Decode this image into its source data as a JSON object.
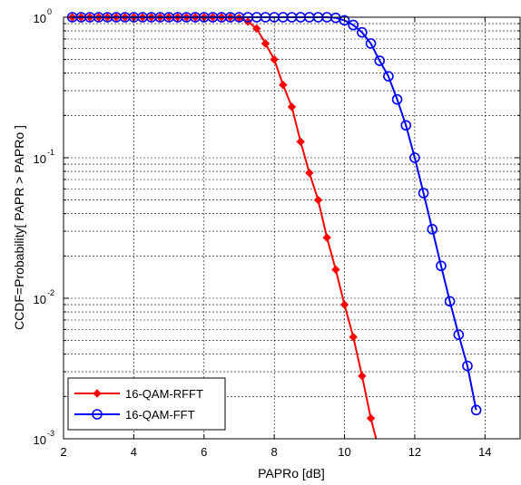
{
  "chart_data": {
    "type": "line",
    "title": "",
    "xlabel": "PAPRo [dB]",
    "ylabel": "CCDF=Probability[ PAPR > PAPRo ]",
    "xlim": [
      2,
      15
    ],
    "ylim": [
      0.001,
      1
    ],
    "yscale": "log",
    "x_ticks": [
      2,
      4,
      6,
      8,
      10,
      12,
      14
    ],
    "x_tick_labels": [
      "2",
      "4",
      "6",
      "8",
      "10",
      "12",
      "14"
    ],
    "y_ticks": [
      0.001,
      0.01,
      0.1,
      1
    ],
    "y_tick_labels": [
      {
        "base": "10",
        "exp": "-3"
      },
      {
        "base": "10",
        "exp": "-2"
      },
      {
        "base": "10",
        "exp": "-1"
      },
      {
        "base": "10",
        "exp": "0"
      }
    ],
    "grid": true,
    "legend_position": "bottom-left",
    "series": [
      {
        "name": "16-QAM-RFFT",
        "color": "#ff0000",
        "marker": "diamond",
        "x": [
          2.25,
          2.5,
          2.75,
          3,
          3.25,
          3.5,
          3.75,
          4,
          4.25,
          4.5,
          4.75,
          5,
          5.25,
          5.5,
          5.75,
          6,
          6.25,
          6.5,
          6.75,
          7,
          7.25,
          7.5,
          7.75,
          8,
          8.25,
          8.5,
          8.75,
          9,
          9.25,
          9.5,
          9.75,
          10,
          10.25,
          10.5,
          10.75,
          11
        ],
        "y": [
          1,
          1,
          1,
          1,
          1,
          1,
          1,
          1,
          1,
          1,
          1,
          1,
          1,
          1,
          1,
          1,
          1,
          1,
          1,
          0.99,
          0.93,
          0.83,
          0.65,
          0.5,
          0.33,
          0.23,
          0.13,
          0.078,
          0.05,
          0.027,
          0.016,
          0.009,
          0.0053,
          0.0028,
          0.0014,
          0.0008
        ]
      },
      {
        "name": "16-QAM-FFT",
        "color": "#0000ff",
        "marker": "circle",
        "x": [
          2.25,
          2.5,
          2.75,
          3,
          3.25,
          3.5,
          3.75,
          4,
          4.25,
          4.5,
          4.75,
          5,
          5.25,
          5.5,
          5.75,
          6,
          6.25,
          6.5,
          6.75,
          7,
          7.25,
          7.5,
          7.75,
          8,
          8.25,
          8.5,
          8.75,
          9,
          9.25,
          9.5,
          9.75,
          10,
          10.25,
          10.5,
          10.75,
          11,
          11.25,
          11.5,
          11.75,
          12,
          12.25,
          12.5,
          12.75,
          13,
          13.25,
          13.5,
          13.75
        ],
        "y": [
          1,
          1,
          1,
          1,
          1,
          1,
          1,
          1,
          1,
          1,
          1,
          1,
          1,
          1,
          1,
          1,
          1,
          1,
          1,
          1,
          1,
          1,
          1,
          1,
          1,
          1,
          1,
          1,
          1,
          1,
          0.99,
          0.95,
          0.88,
          0.78,
          0.65,
          0.49,
          0.38,
          0.26,
          0.17,
          0.1,
          0.056,
          0.031,
          0.017,
          0.0095,
          0.0055,
          0.0033,
          0.0016
        ]
      }
    ]
  }
}
